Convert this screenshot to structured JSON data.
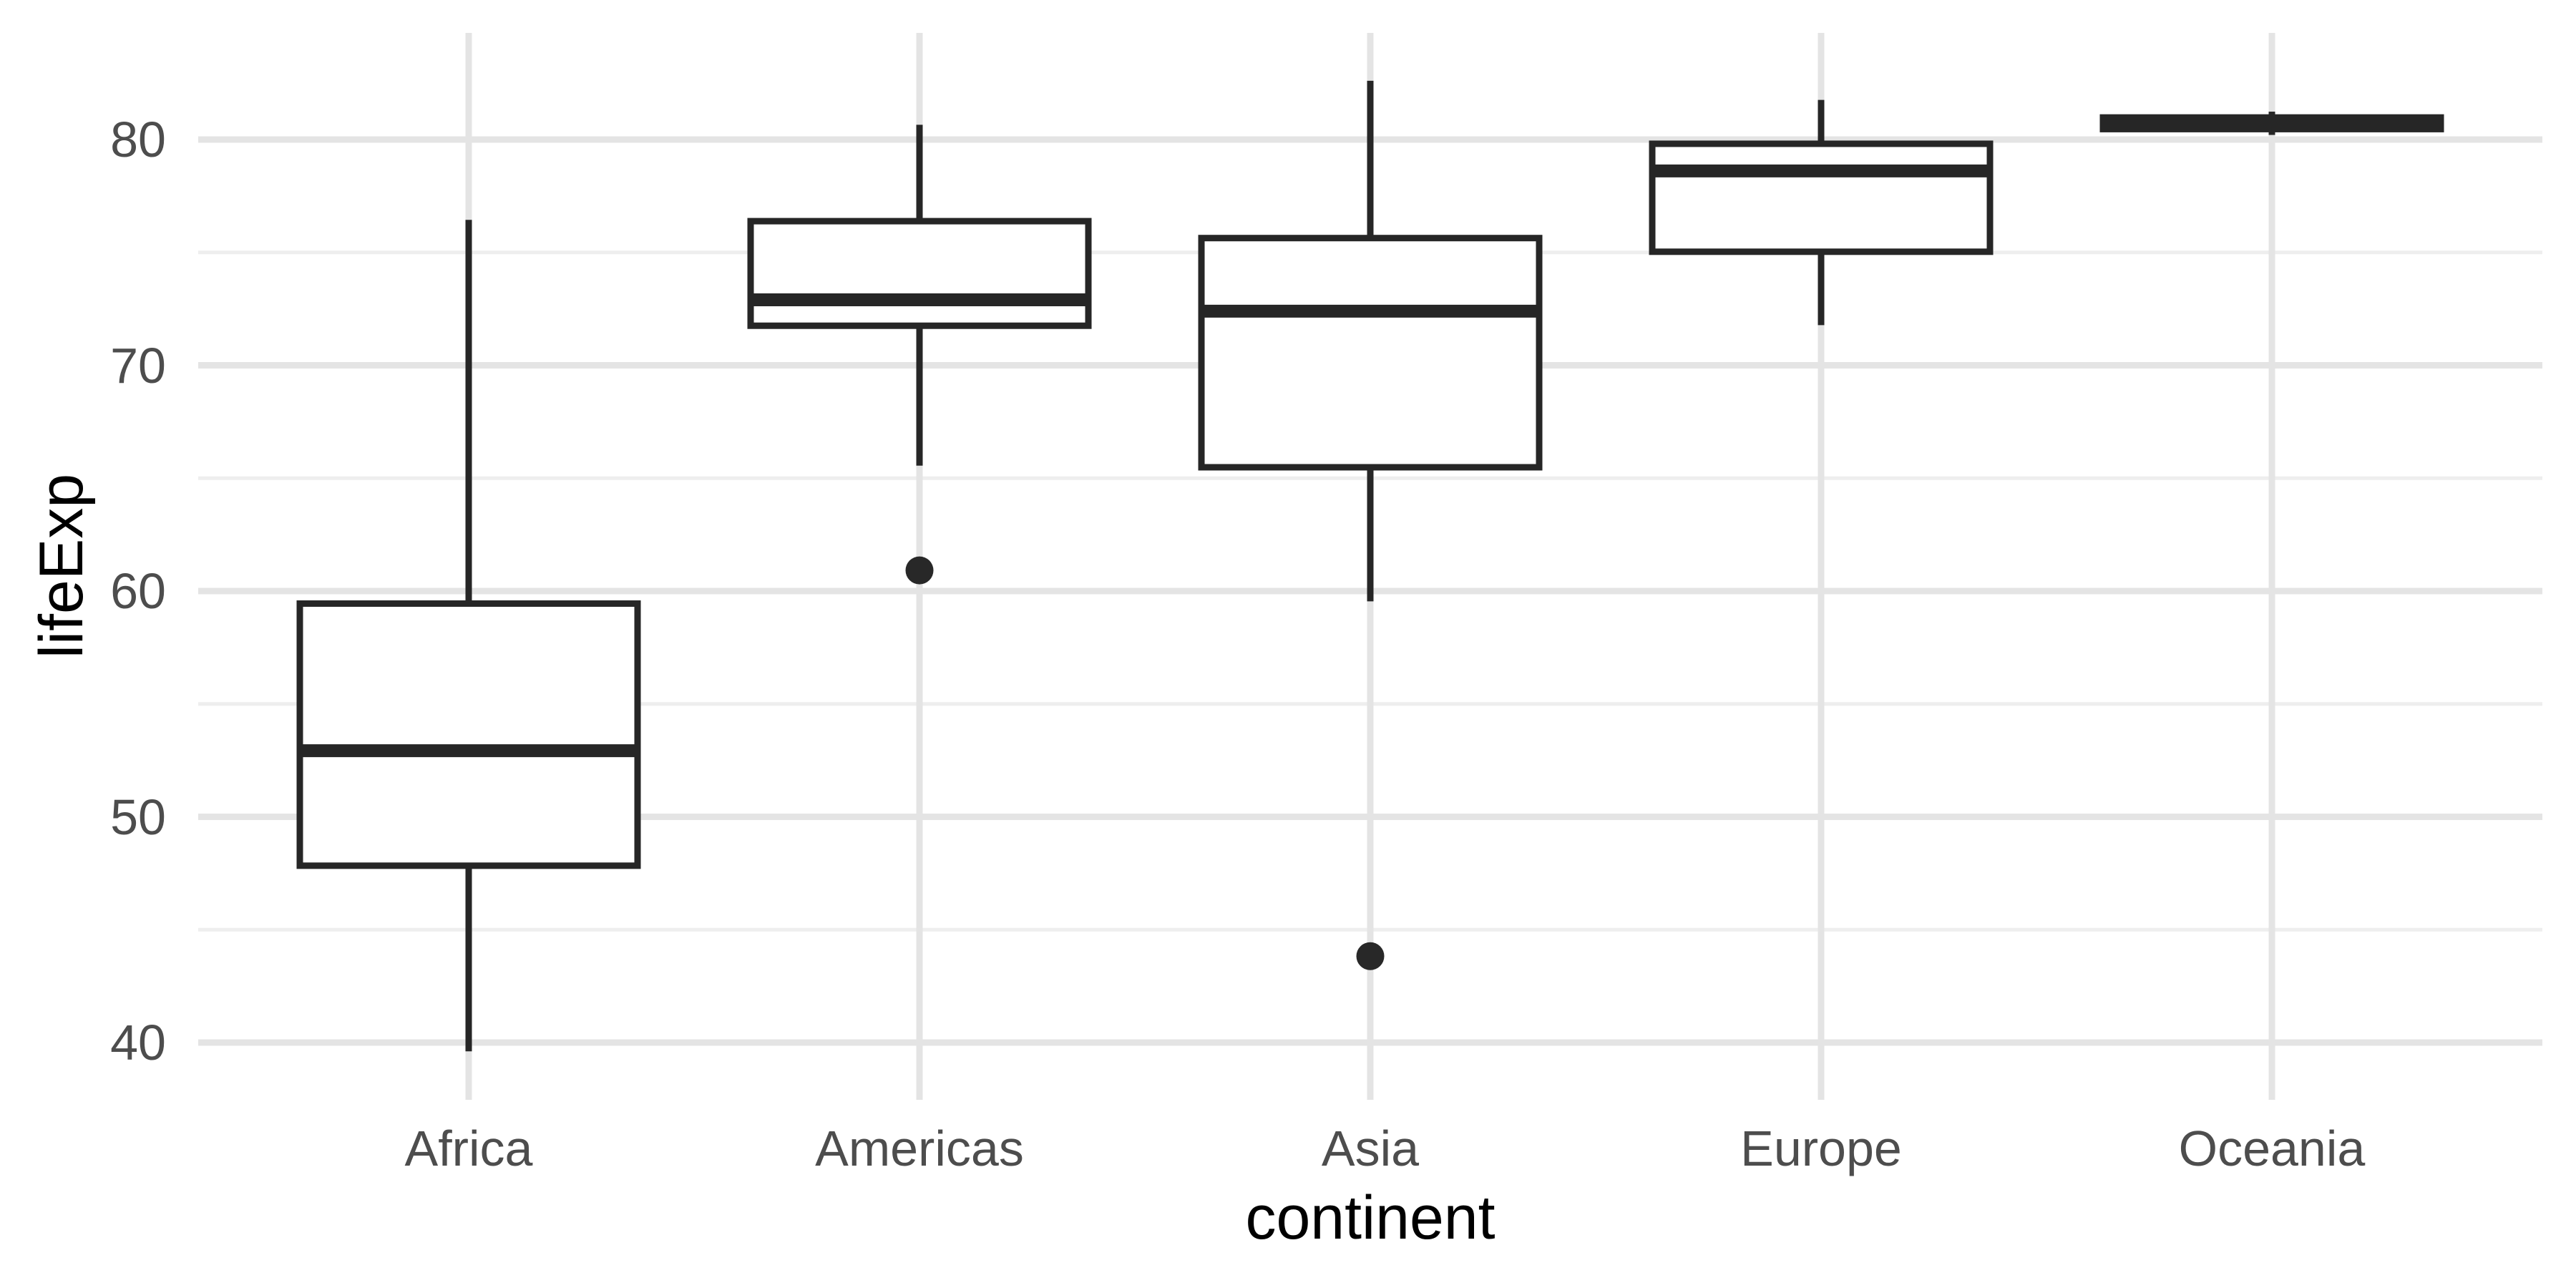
{
  "chart_data": {
    "type": "boxplot",
    "title": "",
    "xlabel": "continent",
    "ylabel": "lifeExp",
    "categories": [
      "Africa",
      "Americas",
      "Asia",
      "Europe",
      "Oceania"
    ],
    "series": [
      {
        "name": "Africa",
        "whisker_low": 39.613,
        "q1": 47.834,
        "median": 52.927,
        "q3": 59.444,
        "whisker_high": 76.442,
        "outliers": []
      },
      {
        "name": "Americas",
        "whisker_low": 65.554,
        "q1": 71.752,
        "median": 72.899,
        "q3": 76.384,
        "whisker_high": 80.653,
        "outliers": [
          60.916
        ]
      },
      {
        "name": "Asia",
        "whisker_low": 59.545,
        "q1": 65.483,
        "median": 72.396,
        "q3": 75.635,
        "whisker_high": 82.603,
        "outliers": [
          43.828
        ]
      },
      {
        "name": "Europe",
        "whisker_low": 71.777,
        "q1": 75.03,
        "median": 78.609,
        "q3": 79.812,
        "whisker_high": 81.757,
        "outliers": []
      },
      {
        "name": "Oceania",
        "whisker_low": 80.204,
        "q1": 80.462,
        "median": 80.72,
        "q3": 80.977,
        "whisker_high": 81.235,
        "outliers": []
      }
    ],
    "y_axis": {
      "ticks": [
        40,
        50,
        60,
        70,
        80
      ],
      "minor_ticks": [
        45,
        55,
        65,
        75
      ],
      "ylim": [
        37.5,
        84.8
      ]
    },
    "x_axis": {
      "ticks": [
        "Africa",
        "Americas",
        "Asia",
        "Europe",
        "Oceania"
      ]
    },
    "grid": {
      "horizontal_major": true,
      "horizontal_minor": true,
      "vertical_major": true,
      "vertical_minor": false
    },
    "legend": "none",
    "colors": {
      "box_stroke": "#262626",
      "box_fill": "#ffffff",
      "median": "#262626",
      "outlier": "#282828",
      "grid_major": "#e4e4e4",
      "grid_minor": "#eeeeee",
      "tick_label": "#4d4d4d",
      "axis_title": "#000000",
      "background": "#ffffff"
    }
  }
}
